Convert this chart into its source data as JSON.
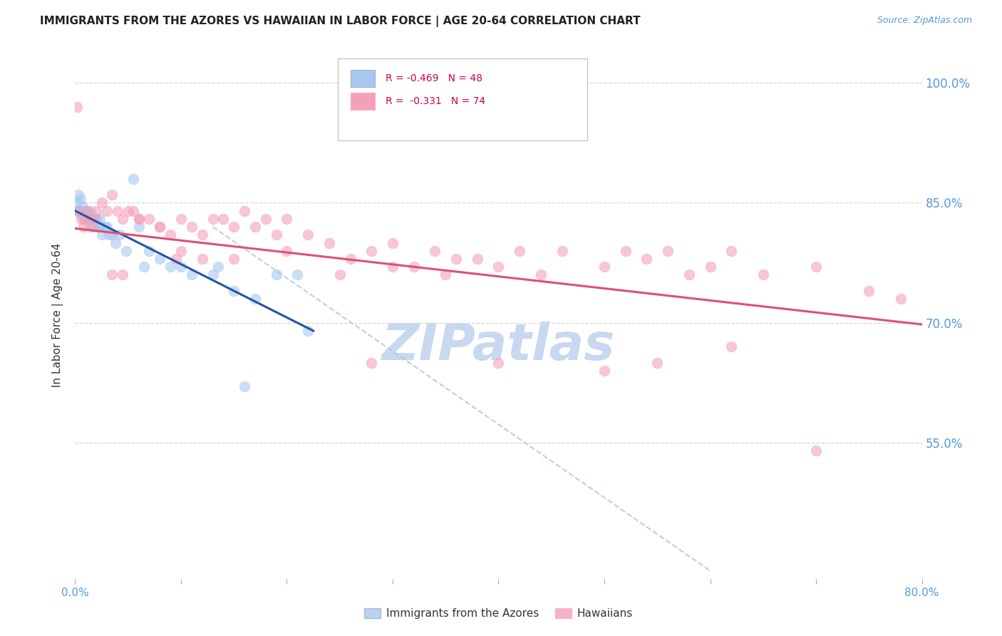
{
  "title": "IMMIGRANTS FROM THE AZORES VS HAWAIIAN IN LABOR FORCE | AGE 20-64 CORRELATION CHART",
  "source": "Source: ZipAtlas.com",
  "ylabel": "In Labor Force | Age 20-64",
  "right_ytick_labels": [
    "100.0%",
    "85.0%",
    "70.0%",
    "55.0%"
  ],
  "right_ytick_values": [
    1.0,
    0.85,
    0.7,
    0.55
  ],
  "xlim": [
    0.0,
    0.8
  ],
  "ylim": [
    0.38,
    1.04
  ],
  "xtick_values": [
    0.0,
    0.1,
    0.2,
    0.3,
    0.4,
    0.5,
    0.6,
    0.7,
    0.8
  ],
  "xticklabels": [
    "0.0%",
    "",
    "",
    "",
    "",
    "",
    "",
    "",
    "80.0%"
  ],
  "blue_color": "#a8c8f0",
  "pink_color": "#f4a0b8",
  "blue_line_color": "#2255aa",
  "pink_line_color": "#e05070",
  "dash_color": "#b0c8e0",
  "watermark": "ZIPatlas",
  "watermark_color": "#c8d8f0",
  "legend_label1": "Immigrants from the Azores",
  "legend_label2": "Hawaiians",
  "grid_color": "#cccccc",
  "bg_color": "#ffffff",
  "axis_color": "#5599dd",
  "tick_color": "#5599dd",
  "blue_x": [
    0.001,
    0.002,
    0.003,
    0.004,
    0.005,
    0.006,
    0.007,
    0.008,
    0.009,
    0.01,
    0.011,
    0.012,
    0.013,
    0.014,
    0.015,
    0.016,
    0.017,
    0.018,
    0.019,
    0.02,
    0.021,
    0.022,
    0.023,
    0.024,
    0.025,
    0.028,
    0.03,
    0.032,
    0.035,
    0.038,
    0.042,
    0.048,
    0.055,
    0.06,
    0.065,
    0.07,
    0.08,
    0.09,
    0.1,
    0.11,
    0.13,
    0.15,
    0.17,
    0.19,
    0.21,
    0.135,
    0.16,
    0.22
  ],
  "blue_y": [
    0.84,
    0.85,
    0.86,
    0.84,
    0.855,
    0.835,
    0.845,
    0.83,
    0.84,
    0.84,
    0.83,
    0.835,
    0.825,
    0.84,
    0.825,
    0.83,
    0.83,
    0.83,
    0.82,
    0.83,
    0.82,
    0.82,
    0.83,
    0.82,
    0.81,
    0.82,
    0.82,
    0.81,
    0.81,
    0.8,
    0.81,
    0.79,
    0.88,
    0.82,
    0.77,
    0.79,
    0.78,
    0.77,
    0.77,
    0.76,
    0.76,
    0.74,
    0.73,
    0.76,
    0.76,
    0.77,
    0.62,
    0.69
  ],
  "pink_x": [
    0.002,
    0.004,
    0.006,
    0.008,
    0.01,
    0.012,
    0.014,
    0.016,
    0.018,
    0.02,
    0.025,
    0.03,
    0.035,
    0.04,
    0.045,
    0.05,
    0.055,
    0.06,
    0.07,
    0.08,
    0.09,
    0.1,
    0.11,
    0.12,
    0.13,
    0.14,
    0.15,
    0.16,
    0.17,
    0.18,
    0.19,
    0.2,
    0.22,
    0.24,
    0.26,
    0.28,
    0.3,
    0.32,
    0.34,
    0.36,
    0.38,
    0.4,
    0.42,
    0.44,
    0.46,
    0.5,
    0.52,
    0.54,
    0.56,
    0.58,
    0.6,
    0.62,
    0.65,
    0.7,
    0.75,
    0.78,
    0.35,
    0.25,
    0.3,
    0.15,
    0.08,
    0.06,
    0.035,
    0.045,
    0.12,
    0.1,
    0.095,
    0.2,
    0.28,
    0.4,
    0.5,
    0.55,
    0.62,
    0.7
  ],
  "pink_y": [
    0.97,
    0.84,
    0.83,
    0.82,
    0.83,
    0.84,
    0.83,
    0.82,
    0.83,
    0.84,
    0.85,
    0.84,
    0.86,
    0.84,
    0.83,
    0.84,
    0.84,
    0.83,
    0.83,
    0.82,
    0.81,
    0.83,
    0.82,
    0.81,
    0.83,
    0.83,
    0.82,
    0.84,
    0.82,
    0.83,
    0.81,
    0.83,
    0.81,
    0.8,
    0.78,
    0.79,
    0.8,
    0.77,
    0.79,
    0.78,
    0.78,
    0.77,
    0.79,
    0.76,
    0.79,
    0.77,
    0.79,
    0.78,
    0.79,
    0.76,
    0.77,
    0.79,
    0.76,
    0.77,
    0.74,
    0.73,
    0.76,
    0.76,
    0.77,
    0.78,
    0.82,
    0.83,
    0.76,
    0.76,
    0.78,
    0.79,
    0.78,
    0.79,
    0.65,
    0.65,
    0.64,
    0.65,
    0.67,
    0.54
  ],
  "blue_line_x0": 0.0,
  "blue_line_x1": 0.225,
  "blue_line_y0": 0.84,
  "blue_line_y1": 0.69,
  "pink_line_x0": 0.0,
  "pink_line_x1": 0.8,
  "pink_line_y0": 0.818,
  "pink_line_y1": 0.698,
  "dash_line_x0": 0.13,
  "dash_line_x1": 0.6,
  "dash_line_y0": 0.82,
  "dash_line_y1": 0.39
}
